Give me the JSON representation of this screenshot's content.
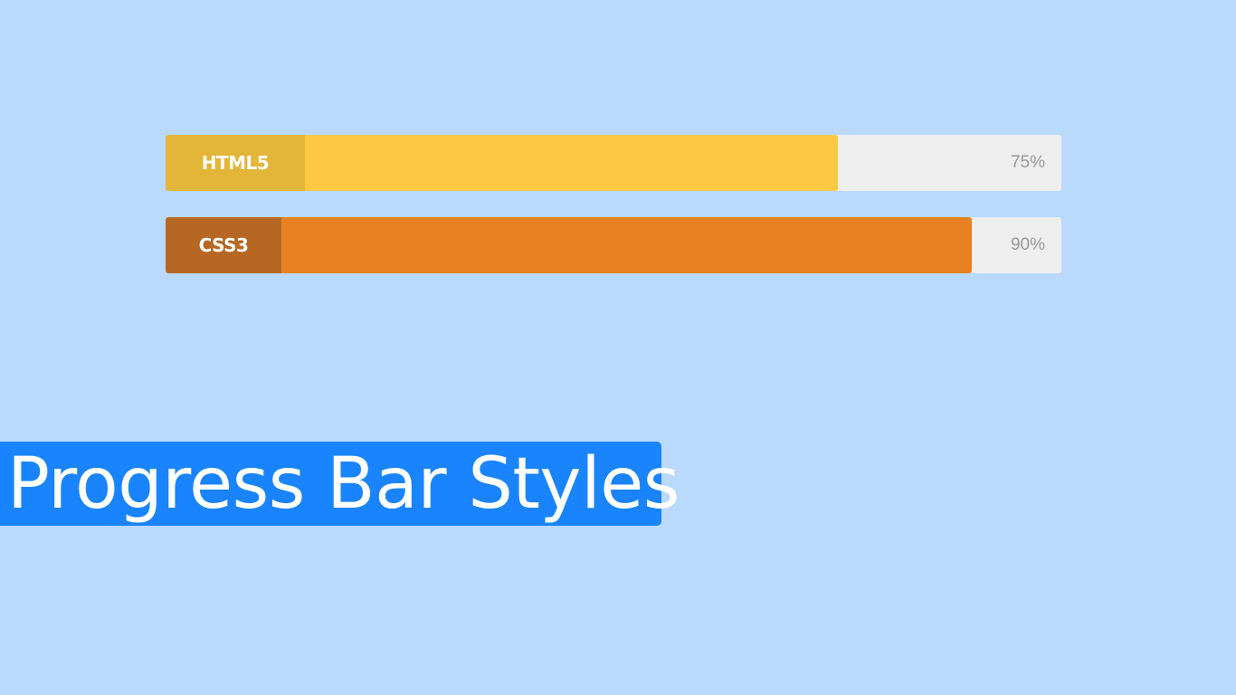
{
  "skills": [
    {
      "label": "HTML5",
      "percent_text": "75%",
      "value": 75,
      "fill_color": "#fdc944",
      "label_color": "#e3b538"
    },
    {
      "label": "CSS3",
      "percent_text": "90%",
      "value": 90,
      "fill_color": "#e78123",
      "label_color": "#b76724"
    }
  ],
  "banner": {
    "title": "Progress Bar Styles",
    "color": "#1a84ff"
  },
  "colors": {
    "background": "#b9dafd",
    "track": "#eeeeee"
  }
}
